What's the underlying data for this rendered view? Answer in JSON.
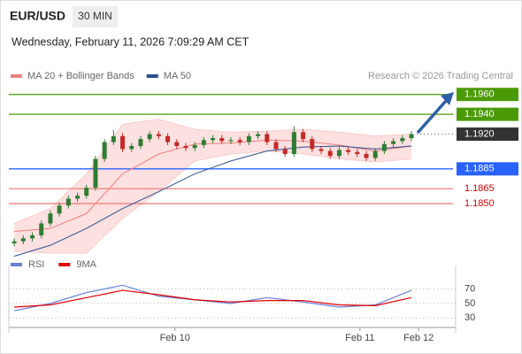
{
  "header": {
    "symbol": "EUR/USD",
    "timeframe": "30 MIN",
    "date": "Wednesday, February 11, 2026 7:09:29 AM CET"
  },
  "chart_data": [
    {
      "type": "candlestick",
      "source": "Research © 2026 Trading Central",
      "up_color": "#2e7d32",
      "down_color": "#c62828",
      "open": [
        1.181,
        1.1812,
        1.1815,
        1.1818,
        1.183,
        1.184,
        1.1848,
        1.1855,
        1.1858,
        1.1866,
        1.1895,
        1.1912,
        1.1918,
        1.1905,
        1.1908,
        1.1915,
        1.192,
        1.1918,
        1.1912,
        1.1908,
        1.1906,
        1.1909,
        1.1914,
        1.1916,
        1.1913,
        1.1914,
        1.1912,
        1.1918,
        1.192,
        1.1912,
        1.1905,
        1.19,
        1.1922,
        1.1915,
        1.1905,
        1.1903,
        1.1898,
        1.1904,
        1.1902,
        1.19,
        1.1896,
        1.1903,
        1.191,
        1.1913,
        1.1916
      ],
      "high": [
        1.1815,
        1.1818,
        1.1821,
        1.1833,
        1.1843,
        1.1851,
        1.1858,
        1.1861,
        1.1869,
        1.1898,
        1.1915,
        1.1924,
        1.1921,
        1.1911,
        1.1918,
        1.1923,
        1.1923,
        1.1921,
        1.1915,
        1.1911,
        1.1912,
        1.1917,
        1.1919,
        1.1919,
        1.1917,
        1.1917,
        1.1921,
        1.1923,
        1.1923,
        1.1915,
        1.1908,
        1.1928,
        1.1925,
        1.1918,
        1.1908,
        1.1906,
        1.1907,
        1.1907,
        1.1905,
        1.1903,
        1.1906,
        1.1913,
        1.1916,
        1.1919,
        1.1923
      ],
      "low": [
        1.1807,
        1.1809,
        1.1812,
        1.1815,
        1.1827,
        1.1837,
        1.1845,
        1.1852,
        1.1855,
        1.1863,
        1.1892,
        1.1909,
        1.1902,
        1.1902,
        1.1905,
        1.1912,
        1.1915,
        1.1909,
        1.1905,
        1.1903,
        1.1903,
        1.1906,
        1.1911,
        1.191,
        1.191,
        1.1909,
        1.1909,
        1.1915,
        1.1909,
        1.1902,
        1.1897,
        1.1897,
        1.1912,
        1.1902,
        1.19,
        1.1895,
        1.1895,
        1.1899,
        1.1897,
        1.1893,
        1.1893,
        1.19,
        1.1907,
        1.191,
        1.1913
      ],
      "close": [
        1.1812,
        1.1815,
        1.1818,
        1.183,
        1.184,
        1.1848,
        1.1855,
        1.1858,
        1.1866,
        1.1895,
        1.1912,
        1.1918,
        1.1905,
        1.1908,
        1.1915,
        1.192,
        1.1918,
        1.1912,
        1.1908,
        1.1906,
        1.1909,
        1.1914,
        1.1916,
        1.1913,
        1.1914,
        1.1912,
        1.1918,
        1.192,
        1.1912,
        1.1905,
        1.19,
        1.1922,
        1.1915,
        1.1905,
        1.1903,
        1.1898,
        1.1904,
        1.1902,
        1.19,
        1.1896,
        1.1903,
        1.191,
        1.1913,
        1.1916,
        1.192
      ],
      "overlay_x": [
        0,
        4,
        8,
        12,
        16,
        20,
        24,
        28,
        32,
        36,
        40,
        44
      ],
      "series": [
        {
          "name": "MA 20 + Bollinger Bands",
          "color": "#f08080",
          "band_color": "#fde0e0",
          "values": [
            1.1822,
            1.1825,
            1.184,
            1.188,
            1.19,
            1.191,
            1.1911,
            1.1914,
            1.1913,
            1.1909,
            1.1903,
            1.1908
          ],
          "upper": [
            1.183,
            1.1845,
            1.188,
            1.193,
            1.1935,
            1.1925,
            1.1922,
            1.1923,
            1.1925,
            1.1922,
            1.1918,
            1.192
          ],
          "lower": [
            1.1802,
            1.18,
            1.18,
            1.1835,
            1.1862,
            1.1893,
            1.19,
            1.1903,
            1.19,
            1.1895,
            1.1892,
            1.1895
          ]
        },
        {
          "name": "MA 50",
          "color": "#2c4f8f",
          "values": [
            1.1797,
            1.1808,
            1.1825,
            1.1845,
            1.1862,
            1.188,
            1.1893,
            1.1903,
            1.1907,
            1.1908,
            1.1905,
            1.1908
          ]
        }
      ],
      "levels": [
        {
          "value": 1.196,
          "label": "1.1960",
          "color": "#4a9a06",
          "label_fill": "#4a9a06",
          "style": "solid"
        },
        {
          "value": 1.194,
          "label": "1.1940",
          "color": "#4a9a06",
          "label_fill": "#4a9a06",
          "style": "solid"
        },
        {
          "value": 1.192,
          "label": "1.1920",
          "color": "#555555",
          "label_fill": "#333333",
          "style": "dotted"
        },
        {
          "value": 1.1885,
          "label": "1.1885",
          "color": "#2962ff",
          "label_fill": "#2962ff",
          "style": "solid"
        },
        {
          "value": 1.1865,
          "label": "1.1865",
          "color": "#f08080",
          "label_color": "#d50000",
          "style": "solid"
        },
        {
          "value": 1.185,
          "label": "1.1850",
          "color": "#f08080",
          "label_color": "#d50000",
          "style": "solid"
        }
      ],
      "xlim": [
        -0.6,
        48.9
      ],
      "ylim": [
        1.1801,
        1.1966
      ],
      "xticks": [
        {
          "value": 17.8,
          "label": "Feb 10"
        },
        {
          "value": 38.3,
          "label": "Feb 11"
        },
        {
          "value": 44.8,
          "label": "Feb 12"
        }
      ]
    },
    {
      "type": "line",
      "x": [
        0,
        4,
        8,
        12,
        16,
        20,
        24,
        28,
        32,
        36,
        40,
        44
      ],
      "series": [
        {
          "name": "RSI",
          "color": "#6a7fd6",
          "values": [
            40,
            50,
            65,
            75,
            60,
            55,
            50,
            58,
            52,
            45,
            48,
            68
          ]
        },
        {
          "name": "9MA",
          "color": "#e00000",
          "values": [
            45,
            48,
            58,
            68,
            62,
            55,
            52,
            54,
            54,
            48,
            47,
            58
          ]
        }
      ],
      "ylim": [
        17,
        90
      ],
      "yticks": [
        30,
        50,
        70
      ]
    }
  ]
}
